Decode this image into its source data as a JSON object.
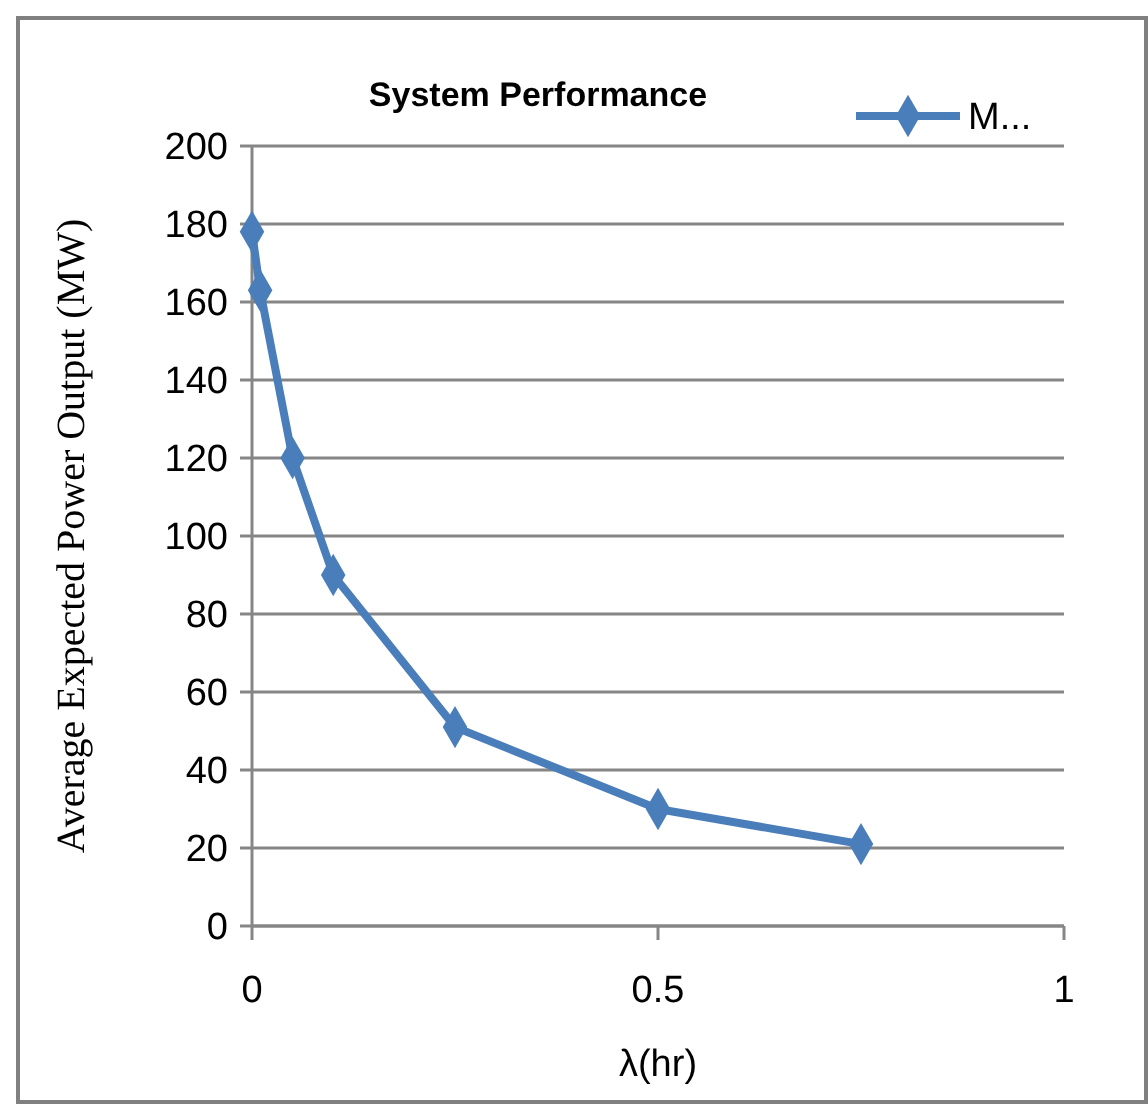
{
  "chart_data": {
    "type": "line",
    "title": "System Performance",
    "xlabel": "λ(hr)",
    "ylabel": "Average Expected Power Output (MW)",
    "x": [
      0,
      0.01,
      0.05,
      0.1,
      0.25,
      0.5,
      0.75
    ],
    "series": [
      {
        "name": "M...",
        "color": "#4a7ebb",
        "values": [
          178,
          163,
          120,
          90,
          51,
          30,
          21
        ]
      }
    ],
    "xlim": [
      0,
      1
    ],
    "xticks": [
      0,
      0.5,
      1
    ],
    "ylim": [
      0,
      200
    ],
    "yticks": [
      0,
      20,
      40,
      60,
      80,
      100,
      120,
      140,
      160,
      180,
      200
    ],
    "grid": "y",
    "legend": "top right",
    "marker": "diamond",
    "line_style": "solid"
  }
}
